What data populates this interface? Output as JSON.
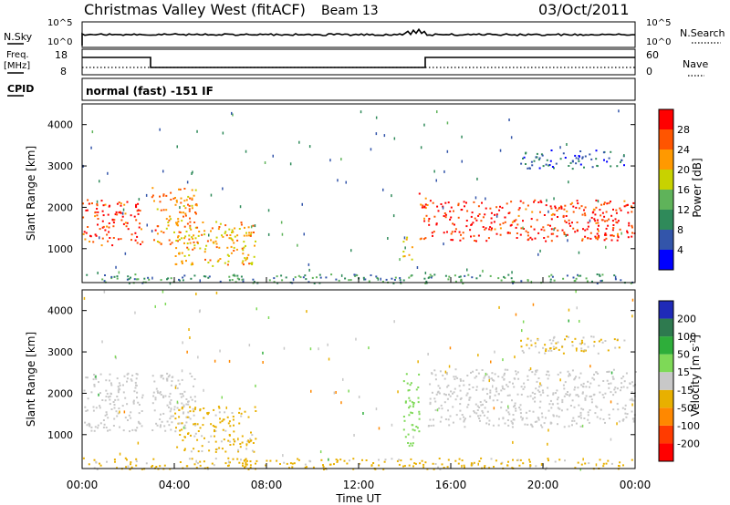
{
  "header": {
    "site": "Christmas Valley West (fitACF)",
    "beam": "Beam 13",
    "date": "03/Oct/2011"
  },
  "status_panels": {
    "nsky_label": "N.Sky",
    "nsky_top": "10^5",
    "nsky_bottom": "10^0",
    "nsearch_label": "N.Search",
    "nsearch_top": "10^5",
    "nsearch_bottom": "10^0",
    "freq_label_1": "Freq.",
    "freq_label_2": "[MHz]",
    "freq_top": "18",
    "freq_bottom": "8",
    "nave_label": "Nave",
    "nave_top": "60",
    "nave_bottom": "0",
    "cpid_label": "CPID",
    "cpid_text": "normal (fast) -151 IF"
  },
  "colors": {
    "power_scale": [
      "#0000ff",
      "#3355aa",
      "#2f8a5a",
      "#5fb35a",
      "#c8d200",
      "#ff9900",
      "#ff5500",
      "#ff0000"
    ],
    "velocity_scale": [
      "#1f2ab8",
      "#2e7a4f",
      "#2eae3a",
      "#7ed957",
      "#c8c8c8",
      "#e8b000",
      "#ff8800",
      "#ff3b00",
      "#ff0000"
    ]
  },
  "chart_data": [
    {
      "type": "heatmap",
      "panel": "power",
      "ylabel": "Slant Range [km]",
      "xlabel": "",
      "ylim": [
        180,
        4500
      ],
      "xlim": [
        0,
        24
      ],
      "y_ticks": [
        "1000",
        "2000",
        "3000",
        "4000"
      ],
      "colorbar_label": "Power [dB]",
      "colorbar_ticks": [
        "4",
        "8",
        "12",
        "16",
        "20",
        "24",
        "28"
      ],
      "colorbar_range": [
        0,
        30
      ],
      "regions": [
        {
          "x0": 0.0,
          "x1": 2.6,
          "r0": 1100,
          "r1": 2200,
          "level": 26
        },
        {
          "x0": 3.0,
          "x1": 5.0,
          "r0": 1100,
          "r1": 2500,
          "level": 22
        },
        {
          "x0": 4.0,
          "x1": 7.5,
          "r0": 600,
          "r1": 1700,
          "level": 20
        },
        {
          "x0": 13.9,
          "x1": 14.3,
          "r0": 700,
          "r1": 1300,
          "level": 18
        },
        {
          "x0": 14.6,
          "x1": 15.0,
          "r0": 1200,
          "r1": 2400,
          "level": 24
        },
        {
          "x0": 15.0,
          "x1": 24.0,
          "r0": 1200,
          "r1": 2200,
          "level": 27
        },
        {
          "x0": 19.0,
          "x1": 23.5,
          "r0": 2950,
          "r1": 3400,
          "level": 6
        },
        {
          "x0": 0.0,
          "x1": 24.0,
          "r0": 180,
          "r1": 400,
          "level": 10
        }
      ]
    },
    {
      "type": "heatmap",
      "panel": "velocity",
      "ylabel": "Slant Range [km]",
      "xlabel": "Time UT",
      "ylim": [
        180,
        4500
      ],
      "xlim": [
        0,
        24
      ],
      "x_ticks": [
        "00:00",
        "04:00",
        "08:00",
        "12:00",
        "16:00",
        "20:00",
        "00:00"
      ],
      "y_ticks": [
        "1000",
        "2000",
        "3000",
        "4000"
      ],
      "colorbar_label": "Velocity [m s-1]",
      "colorbar_ticks": [
        "200",
        "100",
        "50",
        "15",
        "-15",
        "-50",
        "-100",
        "-200"
      ],
      "colorbar_range": [
        -250,
        250
      ],
      "regions": [
        {
          "x0": 0.0,
          "x1": 2.6,
          "r0": 1100,
          "r1": 2500,
          "level": 0
        },
        {
          "x0": 3.0,
          "x1": 5.0,
          "r0": 1100,
          "r1": 2500,
          "level": 0
        },
        {
          "x0": 4.0,
          "x1": 7.5,
          "r0": 600,
          "r1": 1700,
          "level": -40
        },
        {
          "x0": 13.9,
          "x1": 14.6,
          "r0": 700,
          "r1": 2500,
          "level": 60
        },
        {
          "x0": 15.0,
          "x1": 24.0,
          "r0": 1200,
          "r1": 2600,
          "level": 0
        },
        {
          "x0": 19.0,
          "x1": 23.5,
          "r0": 2950,
          "r1": 3400,
          "level": -30
        },
        {
          "x0": 0.0,
          "x1": 24.0,
          "r0": 180,
          "r1": 450,
          "level": -40
        }
      ]
    }
  ]
}
